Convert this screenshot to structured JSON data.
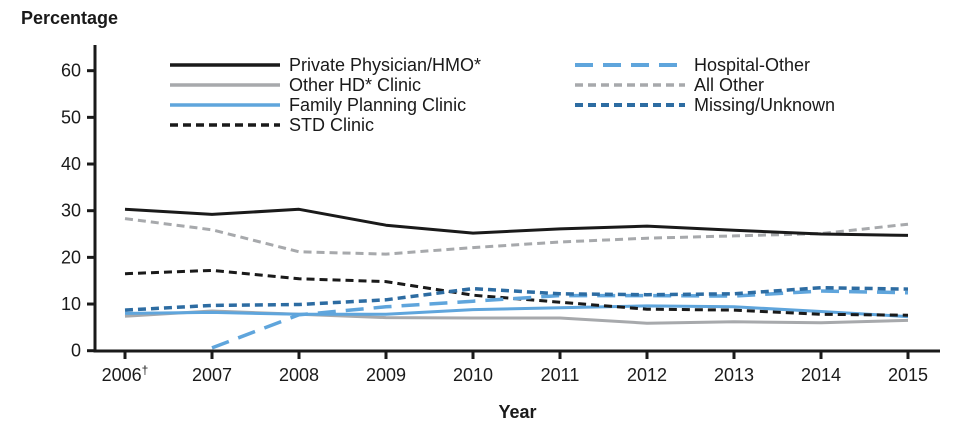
{
  "page": {
    "background": "#ffffff",
    "text_color": "#1a1a1a"
  },
  "chart_data": {
    "type": "line",
    "title": "",
    "ylabel": "Percentage",
    "xlabel": "Year",
    "x_categories": [
      "2006",
      "2007",
      "2008",
      "2009",
      "2010",
      "2011",
      "2012",
      "2013",
      "2014",
      "2015"
    ],
    "x_first_label_superscript": "†",
    "ylim": [
      0,
      60
    ],
    "yticks": [
      0,
      10,
      20,
      30,
      40,
      50,
      60
    ],
    "grid": false,
    "legend_position": "inside-top, two columns",
    "series": [
      {
        "name": "Private Physician/HMO*",
        "color": "#1a1a1a",
        "style": "solid",
        "width": 3,
        "values": [
          30.3,
          29.2,
          30.3,
          26.9,
          25.2,
          26.1,
          26.7,
          25.8,
          25.0,
          24.7
        ]
      },
      {
        "name": "Other HD* Clinic",
        "color": "#a7a9ac",
        "style": "solid",
        "width": 3,
        "values": [
          7.4,
          8.5,
          7.8,
          7.1,
          7.0,
          7.0,
          5.9,
          6.2,
          6.0,
          6.5
        ]
      },
      {
        "name": "Family Planning Clinic",
        "color": "#5fa5dc",
        "style": "solid",
        "width": 3,
        "values": [
          8.0,
          8.2,
          7.8,
          7.8,
          8.8,
          9.2,
          9.6,
          9.4,
          8.4,
          7.3
        ]
      },
      {
        "name": "STD Clinic",
        "color": "#1a1a1a",
        "style": "dashed",
        "width": 3,
        "values": [
          16.5,
          17.2,
          15.4,
          14.8,
          11.9,
          10.4,
          8.9,
          8.7,
          7.8,
          7.6
        ]
      },
      {
        "name": "Hospital-Other",
        "color": "#5fa5dc",
        "style": "long-dashed",
        "width": 3.5,
        "values": [
          null,
          0.6,
          7.7,
          9.4,
          10.6,
          11.8,
          11.8,
          11.7,
          12.8,
          12.4
        ]
      },
      {
        "name": "All Other",
        "color": "#a7a9ac",
        "style": "dashed",
        "width": 3,
        "values": [
          28.3,
          25.9,
          21.2,
          20.7,
          22.1,
          23.3,
          24.1,
          24.6,
          25.1,
          27.1
        ]
      },
      {
        "name": "Missing/Unknown",
        "color": "#2d6ca2",
        "style": "dashed",
        "width": 3.5,
        "values": [
          8.7,
          9.7,
          9.9,
          10.9,
          13.3,
          12.2,
          12.0,
          12.2,
          13.5,
          13.2
        ]
      }
    ]
  }
}
